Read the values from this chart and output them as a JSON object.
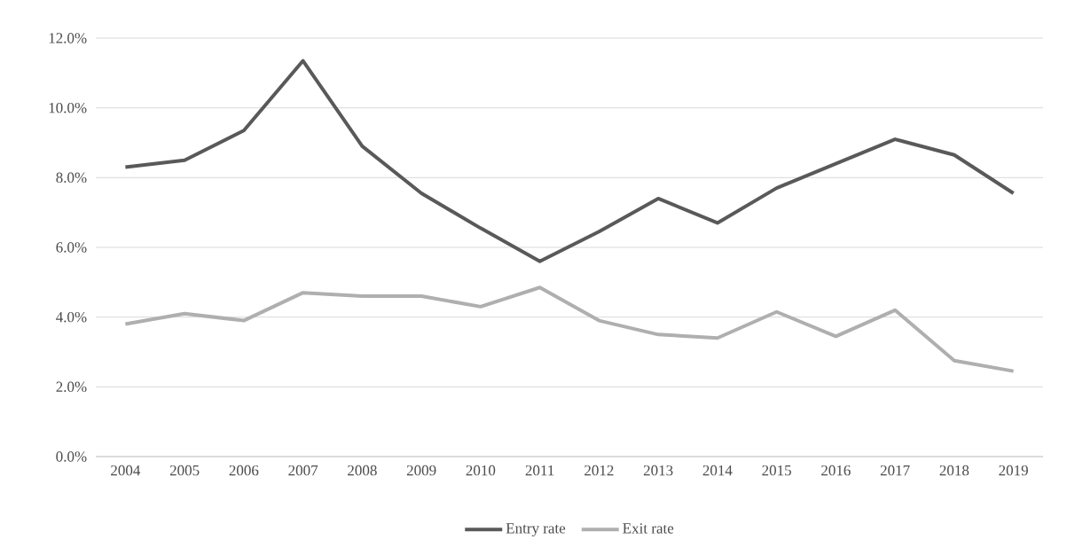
{
  "chart_data": {
    "type": "line",
    "categories": [
      "2004",
      "2005",
      "2006",
      "2007",
      "2008",
      "2009",
      "2010",
      "2011",
      "2012",
      "2013",
      "2014",
      "2015",
      "2016",
      "2017",
      "2018",
      "2019"
    ],
    "series": [
      {
        "name": "Entry rate",
        "color": "#595959",
        "values": [
          8.3,
          8.5,
          9.35,
          11.35,
          8.9,
          7.55,
          6.55,
          5.6,
          6.45,
          7.4,
          6.7,
          7.7,
          8.4,
          9.1,
          8.65,
          7.55
        ]
      },
      {
        "name": "Exit rate",
        "color": "#afafaf",
        "values": [
          3.8,
          4.1,
          3.9,
          4.7,
          4.6,
          4.6,
          4.3,
          4.85,
          3.9,
          3.5,
          3.4,
          4.15,
          3.45,
          4.2,
          2.75,
          2.45
        ]
      }
    ],
    "ylim": [
      0,
      12
    ],
    "yticks": [
      {
        "value": 0,
        "label": "0.0%"
      },
      {
        "value": 2,
        "label": "2.0%"
      },
      {
        "value": 4,
        "label": "4.0%"
      },
      {
        "value": 6,
        "label": "6.0%"
      },
      {
        "value": 8,
        "label": "8.0%"
      },
      {
        "value": 10,
        "label": "10.0%"
      },
      {
        "value": 12,
        "label": "12.0%"
      }
    ],
    "grid": "y",
    "legend": "bottom",
    "marker": "none",
    "line_style": "solid"
  }
}
